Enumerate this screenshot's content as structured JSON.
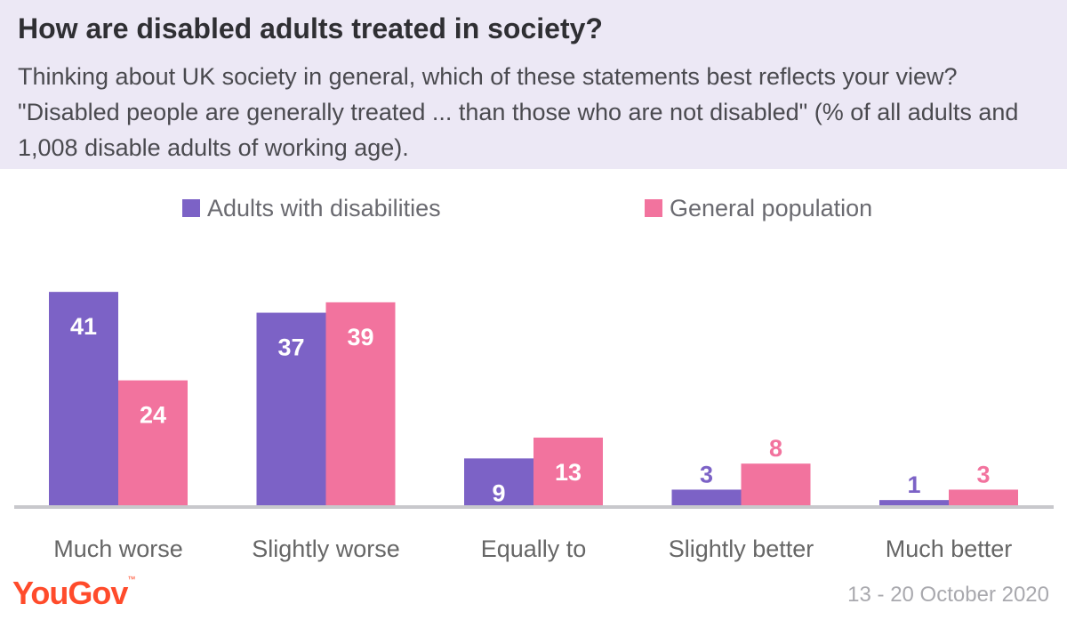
{
  "header": {
    "title": "How are disabled adults treated in society?",
    "subtitle": "Thinking about UK society in general, which of these statements best reflects your view? \"Disabled people are generally treated ... than those who are not disabled\" (% of all adults and 1,008 disable adults of working age)."
  },
  "footer": {
    "logo": "YouGov",
    "date": "13 - 20 October 2020"
  },
  "colors": {
    "disabled": "#7c62c6",
    "general": "#f2739e",
    "axis": "#c8c8cc",
    "category_text": "#666666"
  },
  "chart_data": {
    "type": "bar",
    "categories": [
      "Much worse",
      "Slightly worse",
      "Equally to",
      "Slightly better",
      "Much better"
    ],
    "series": [
      {
        "name": "Adults with disabilities",
        "values": [
          41,
          37,
          9,
          3,
          1
        ]
      },
      {
        "name": "General population",
        "values": [
          24,
          39,
          13,
          8,
          3
        ]
      }
    ],
    "ylim": [
      0,
      45
    ],
    "grid": false,
    "legend": "top"
  }
}
